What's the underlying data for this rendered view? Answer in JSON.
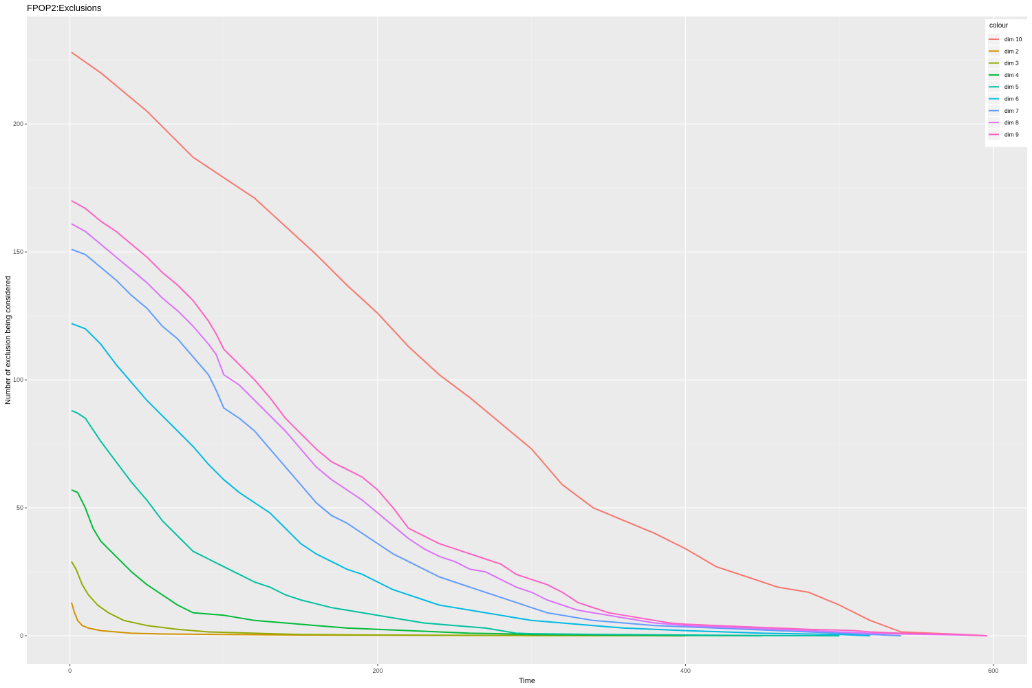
{
  "chart_data": {
    "type": "line",
    "title": "FPOP2:Exclusions",
    "xlabel": "Time",
    "ylabel": "Number of exclusion being considered",
    "xlim": [
      -28,
      622
    ],
    "ylim": [
      -11,
      242
    ],
    "x_ticks": [
      0,
      200,
      400,
      600
    ],
    "y_ticks": [
      0,
      50,
      100,
      150,
      200
    ],
    "x_tick_labels": [
      "0",
      "200",
      "400",
      "600"
    ],
    "y_tick_labels": [
      "0",
      "50",
      "100",
      "150",
      "200"
    ],
    "grid": true,
    "legend_title": "colour",
    "legend_position": "top-right",
    "series": [
      {
        "name": "dim 10",
        "color": "#F8766D",
        "points": [
          [
            1,
            228
          ],
          [
            20,
            220
          ],
          [
            50,
            205
          ],
          [
            70,
            193
          ],
          [
            80,
            187
          ],
          [
            100,
            179
          ],
          [
            120,
            171
          ],
          [
            140,
            160
          ],
          [
            160,
            149
          ],
          [
            180,
            137
          ],
          [
            200,
            126
          ],
          [
            220,
            113
          ],
          [
            240,
            102
          ],
          [
            260,
            93
          ],
          [
            280,
            83
          ],
          [
            300,
            73
          ],
          [
            320,
            59
          ],
          [
            340,
            50
          ],
          [
            360,
            45
          ],
          [
            380,
            40
          ],
          [
            400,
            34
          ],
          [
            420,
            27
          ],
          [
            440,
            23
          ],
          [
            460,
            19
          ],
          [
            480,
            17
          ],
          [
            500,
            12
          ],
          [
            520,
            6
          ],
          [
            540,
            1.5
          ],
          [
            560,
            1
          ],
          [
            580,
            0.5
          ],
          [
            596,
            0
          ]
        ]
      },
      {
        "name": "dim 2",
        "color": "#D39200",
        "points": [
          [
            1,
            13
          ],
          [
            3,
            9
          ],
          [
            5,
            6
          ],
          [
            8,
            4
          ],
          [
            12,
            3
          ],
          [
            20,
            2
          ],
          [
            30,
            1.5
          ],
          [
            40,
            1
          ],
          [
            60,
            0.7
          ],
          [
            100,
            0.5
          ],
          [
            150,
            0.3
          ],
          [
            200,
            0.2
          ],
          [
            300,
            0.1
          ],
          [
            400,
            0
          ]
        ]
      },
      {
        "name": "dim 3",
        "color": "#93AA00",
        "points": [
          [
            1,
            29
          ],
          [
            4,
            26
          ],
          [
            8,
            20
          ],
          [
            12,
            16
          ],
          [
            18,
            12
          ],
          [
            25,
            9
          ],
          [
            35,
            6
          ],
          [
            50,
            4
          ],
          [
            70,
            2.5
          ],
          [
            90,
            1.5
          ],
          [
            120,
            1
          ],
          [
            150,
            0.5
          ],
          [
            200,
            0.3
          ],
          [
            300,
            0.1
          ],
          [
            400,
            0
          ]
        ]
      },
      {
        "name": "dim 4",
        "color": "#00BA38",
        "points": [
          [
            1,
            57
          ],
          [
            5,
            56
          ],
          [
            10,
            50
          ],
          [
            15,
            42
          ],
          [
            20,
            37
          ],
          [
            30,
            31
          ],
          [
            40,
            25
          ],
          [
            50,
            20
          ],
          [
            60,
            16
          ],
          [
            70,
            12
          ],
          [
            80,
            9
          ],
          [
            100,
            8
          ],
          [
            120,
            6
          ],
          [
            140,
            5
          ],
          [
            160,
            4
          ],
          [
            180,
            3
          ],
          [
            200,
            2.5
          ],
          [
            220,
            2
          ],
          [
            240,
            1.5
          ],
          [
            260,
            1
          ],
          [
            280,
            0.8
          ],
          [
            300,
            0.5
          ],
          [
            350,
            0.3
          ],
          [
            400,
            0.1
          ],
          [
            450,
            0
          ]
        ]
      },
      {
        "name": "dim 5",
        "color": "#00C19F",
        "points": [
          [
            1,
            88
          ],
          [
            5,
            87
          ],
          [
            10,
            85
          ],
          [
            20,
            76
          ],
          [
            30,
            68
          ],
          [
            40,
            60
          ],
          [
            50,
            53
          ],
          [
            60,
            45
          ],
          [
            70,
            39
          ],
          [
            80,
            33
          ],
          [
            90,
            30
          ],
          [
            100,
            27
          ],
          [
            110,
            24
          ],
          [
            120,
            21
          ],
          [
            130,
            19
          ],
          [
            140,
            16
          ],
          [
            150,
            14
          ],
          [
            170,
            11
          ],
          [
            190,
            9
          ],
          [
            210,
            7
          ],
          [
            230,
            5
          ],
          [
            250,
            4
          ],
          [
            270,
            3
          ],
          [
            280,
            2
          ],
          [
            290,
            1
          ],
          [
            300,
            0.8
          ],
          [
            350,
            0.5
          ],
          [
            400,
            0.3
          ],
          [
            450,
            0.1
          ],
          [
            500,
            0
          ]
        ]
      },
      {
        "name": "dim 6",
        "color": "#00B9E3",
        "points": [
          [
            1,
            122
          ],
          [
            10,
            120
          ],
          [
            20,
            114
          ],
          [
            30,
            106
          ],
          [
            40,
            99
          ],
          [
            50,
            92
          ],
          [
            60,
            86
          ],
          [
            70,
            80
          ],
          [
            80,
            74
          ],
          [
            90,
            67
          ],
          [
            100,
            61
          ],
          [
            110,
            56
          ],
          [
            120,
            52
          ],
          [
            130,
            48
          ],
          [
            140,
            42
          ],
          [
            150,
            36
          ],
          [
            160,
            32
          ],
          [
            170,
            29
          ],
          [
            180,
            26
          ],
          [
            190,
            24
          ],
          [
            200,
            21
          ],
          [
            210,
            18
          ],
          [
            220,
            16
          ],
          [
            230,
            14
          ],
          [
            240,
            12
          ],
          [
            250,
            11
          ],
          [
            260,
            10
          ],
          [
            270,
            9
          ],
          [
            280,
            8
          ],
          [
            290,
            7
          ],
          [
            300,
            6
          ],
          [
            320,
            5
          ],
          [
            340,
            4
          ],
          [
            360,
            3
          ],
          [
            380,
            2.5
          ],
          [
            400,
            2
          ],
          [
            450,
            1
          ],
          [
            500,
            0.5
          ],
          [
            520,
            0
          ]
        ]
      },
      {
        "name": "dim 7",
        "color": "#619CFF",
        "points": [
          [
            1,
            151
          ],
          [
            10,
            149
          ],
          [
            20,
            144
          ],
          [
            30,
            139
          ],
          [
            40,
            133
          ],
          [
            50,
            128
          ],
          [
            60,
            121
          ],
          [
            70,
            116
          ],
          [
            80,
            109
          ],
          [
            90,
            102
          ],
          [
            95,
            96
          ],
          [
            100,
            89
          ],
          [
            110,
            85
          ],
          [
            120,
            80
          ],
          [
            130,
            73
          ],
          [
            140,
            66
          ],
          [
            150,
            59
          ],
          [
            160,
            52
          ],
          [
            170,
            47
          ],
          [
            180,
            44
          ],
          [
            190,
            40
          ],
          [
            200,
            36
          ],
          [
            210,
            32
          ],
          [
            220,
            29
          ],
          [
            230,
            26
          ],
          [
            240,
            23
          ],
          [
            250,
            21
          ],
          [
            260,
            19
          ],
          [
            270,
            17
          ],
          [
            280,
            15
          ],
          [
            290,
            13
          ],
          [
            300,
            11
          ],
          [
            310,
            9
          ],
          [
            320,
            8
          ],
          [
            330,
            7
          ],
          [
            340,
            6
          ],
          [
            360,
            5
          ],
          [
            380,
            4
          ],
          [
            400,
            3.5
          ],
          [
            420,
            3
          ],
          [
            440,
            2.5
          ],
          [
            460,
            2
          ],
          [
            480,
            1.5
          ],
          [
            500,
            1
          ],
          [
            520,
            0.5
          ],
          [
            540,
            0
          ]
        ]
      },
      {
        "name": "dim 8",
        "color": "#DB72FB",
        "points": [
          [
            1,
            161
          ],
          [
            10,
            158
          ],
          [
            20,
            153
          ],
          [
            30,
            148
          ],
          [
            40,
            143
          ],
          [
            50,
            138
          ],
          [
            60,
            132
          ],
          [
            70,
            127
          ],
          [
            80,
            121
          ],
          [
            90,
            114
          ],
          [
            95,
            110
          ],
          [
            100,
            102
          ],
          [
            110,
            98
          ],
          [
            120,
            92
          ],
          [
            130,
            86
          ],
          [
            140,
            80
          ],
          [
            150,
            73
          ],
          [
            160,
            66
          ],
          [
            170,
            61
          ],
          [
            180,
            57
          ],
          [
            190,
            53
          ],
          [
            200,
            48
          ],
          [
            210,
            43
          ],
          [
            220,
            38
          ],
          [
            230,
            34
          ],
          [
            240,
            31
          ],
          [
            250,
            29
          ],
          [
            260,
            26
          ],
          [
            270,
            25
          ],
          [
            280,
            22
          ],
          [
            290,
            19
          ],
          [
            300,
            17
          ],
          [
            310,
            14
          ],
          [
            320,
            12
          ],
          [
            330,
            10
          ],
          [
            340,
            9
          ],
          [
            360,
            7
          ],
          [
            380,
            5
          ],
          [
            400,
            4
          ],
          [
            420,
            3.5
          ],
          [
            440,
            3
          ],
          [
            460,
            2.5
          ],
          [
            480,
            2
          ],
          [
            500,
            1.5
          ],
          [
            520,
            1
          ],
          [
            540,
            0.7
          ],
          [
            560,
            0.5
          ],
          [
            580,
            0.3
          ],
          [
            596,
            0
          ]
        ]
      },
      {
        "name": "dim 9",
        "color": "#FF61C3",
        "points": [
          [
            1,
            170
          ],
          [
            10,
            167
          ],
          [
            20,
            162
          ],
          [
            30,
            158
          ],
          [
            40,
            153
          ],
          [
            50,
            148
          ],
          [
            60,
            142
          ],
          [
            70,
            137
          ],
          [
            80,
            131
          ],
          [
            90,
            123
          ],
          [
            95,
            118
          ],
          [
            100,
            112
          ],
          [
            110,
            106
          ],
          [
            120,
            100
          ],
          [
            130,
            93
          ],
          [
            140,
            85
          ],
          [
            150,
            79
          ],
          [
            160,
            73
          ],
          [
            170,
            68
          ],
          [
            180,
            65
          ],
          [
            190,
            62
          ],
          [
            200,
            57
          ],
          [
            210,
            50
          ],
          [
            220,
            42
          ],
          [
            230,
            39
          ],
          [
            240,
            36
          ],
          [
            250,
            34
          ],
          [
            260,
            32
          ],
          [
            270,
            30
          ],
          [
            280,
            28
          ],
          [
            290,
            24
          ],
          [
            300,
            22
          ],
          [
            310,
            20
          ],
          [
            320,
            17
          ],
          [
            330,
            13
          ],
          [
            340,
            11
          ],
          [
            350,
            9
          ],
          [
            360,
            8
          ],
          [
            370,
            7
          ],
          [
            380,
            6
          ],
          [
            390,
            5
          ],
          [
            400,
            4.5
          ],
          [
            420,
            4
          ],
          [
            440,
            3.5
          ],
          [
            460,
            3
          ],
          [
            480,
            2.5
          ],
          [
            500,
            2.2
          ],
          [
            510,
            2
          ],
          [
            520,
            1.5
          ],
          [
            540,
            1
          ],
          [
            560,
            0.8
          ],
          [
            580,
            0.5
          ],
          [
            596,
            0
          ]
        ]
      }
    ]
  }
}
